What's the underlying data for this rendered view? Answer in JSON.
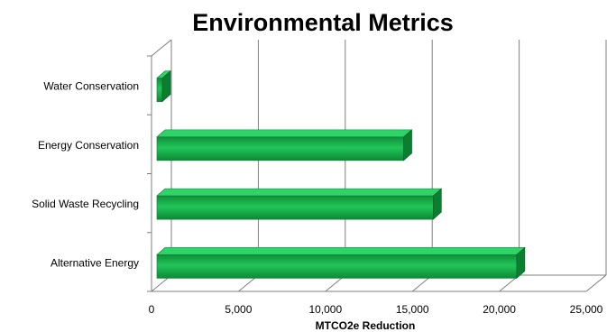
{
  "chart_data": {
    "type": "bar",
    "orientation": "horizontal",
    "title": "Environmental Metrics",
    "xlabel": "MTCO2e Reduction",
    "ylabel": "",
    "categories": [
      "Water Conservation",
      "Energy Conservation",
      "Solid Waste Recycling",
      "Alternative Energy"
    ],
    "values": [
      500,
      14500,
      16200,
      21000
    ],
    "xlim": [
      0,
      25000
    ],
    "xticks": [
      "0",
      "5,000",
      "10,000",
      "15,000",
      "20,000",
      "25,000"
    ],
    "grid": true,
    "legend": "none",
    "bar_color": "#1db954",
    "bar_dark_color": "#0a7f2f",
    "three_d": true
  }
}
